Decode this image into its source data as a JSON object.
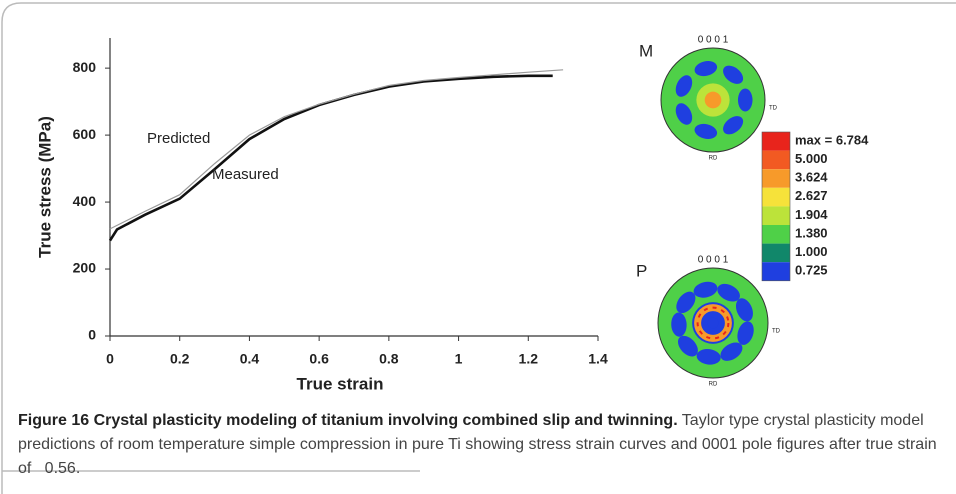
{
  "chart_data": {
    "type": "line",
    "xlabel": "True strain",
    "ylabel": "True stress (MPa)",
    "xlim": [
      0,
      1.4
    ],
    "xticks": [
      0,
      0.2,
      0.4,
      0.6,
      0.8,
      1,
      1.2,
      1.4
    ],
    "ylim": [
      0,
      890
    ],
    "yticks": [
      0,
      200,
      400,
      600,
      800
    ],
    "series": [
      {
        "name": "Measured",
        "color": "#111111",
        "x": [
          0,
          0.02,
          0.1,
          0.2,
          0.3,
          0.4,
          0.5,
          0.6,
          0.7,
          0.8,
          0.9,
          1.0,
          1.1,
          1.2,
          1.27
        ],
        "values": [
          285,
          318,
          362,
          410,
          498,
          588,
          648,
          690,
          720,
          745,
          760,
          768,
          774,
          777,
          777
        ]
      },
      {
        "name": "Predicted",
        "color": "#9a9a9a",
        "x": [
          0,
          0.1,
          0.2,
          0.3,
          0.4,
          0.5,
          0.6,
          0.7,
          0.8,
          0.9,
          1.0,
          1.1,
          1.2,
          1.3
        ],
        "values": [
          320,
          372,
          422,
          515,
          600,
          655,
          692,
          722,
          748,
          763,
          772,
          780,
          788,
          795
        ]
      }
    ],
    "annotations": [
      "Predicted",
      "Measured"
    ]
  },
  "pole_figures": [
    {
      "label": "M",
      "title": "0 0 0 1",
      "td": "TD",
      "rd": "RD"
    },
    {
      "label": "P",
      "title": "0 0 0 1",
      "td": "TD",
      "rd": "RD"
    }
  ],
  "color_scale": {
    "labels": [
      "max = 6.784",
      "5.000",
      "3.624",
      "2.627",
      "1.904",
      "1.380",
      "1.000",
      "0.725"
    ],
    "colors": [
      "#e8241c",
      "#f25a22",
      "#f79a2a",
      "#f6e23a",
      "#bce33a",
      "#4fd048",
      "#11876a",
      "#1f3fe0"
    ]
  },
  "caption": {
    "label": "Figure 16",
    "title": "Crystal plasticity modeling of titanium involving combined slip and twinning.",
    "text": "Taylor type crystal plasticity model predictions of room temperature simple compression in pure Ti showing stress strain curves and 0001 pole figures after true strain of   0.56."
  }
}
